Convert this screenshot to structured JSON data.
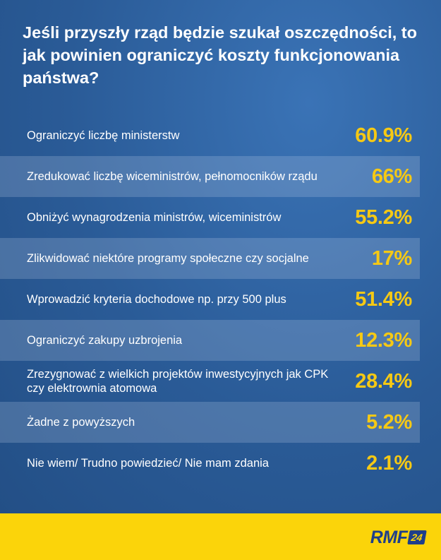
{
  "chart_data": {
    "type": "table",
    "title": "Jeśli przyszły rząd będzie szukał oszczędności, to jak powinien ograniczyć koszty funkcjonowania państwa?",
    "rows": [
      {
        "label": "Ograniczyć liczbę ministerstw",
        "value": "60.9%"
      },
      {
        "label": "Zredukować liczbę wiceministrów, pełnomocników rządu",
        "value": "66%"
      },
      {
        "label": "Obniżyć wynagrodzenia ministrów, wiceministrów",
        "value": "55.2%"
      },
      {
        "label": "Zlikwidować  niektóre programy społeczne czy socjalne",
        "value": "17%"
      },
      {
        "label": "Wprowadzić kryteria dochodowe np. przy 500 plus",
        "value": "51.4%"
      },
      {
        "label": "Ograniczyć zakupy uzbrojenia",
        "value": "12.3%"
      },
      {
        "label": "Zrezygnować z wielkich projektów inwestycyjnych jak CPK czy elektrownia atomowa",
        "value": "28.4%"
      },
      {
        "label": "Żadne z powyższych",
        "value": "5.2%"
      },
      {
        "label": "Nie wiem/ Trudno powiedzieć/ Nie mam zdania",
        "value": "2.1%"
      }
    ],
    "colors": {
      "background": "#2c5d98",
      "value_text": "#f6c914",
      "footer": "#fbd40a"
    }
  },
  "footer": {
    "logo_text": "RMF",
    "logo_badge": "24"
  }
}
